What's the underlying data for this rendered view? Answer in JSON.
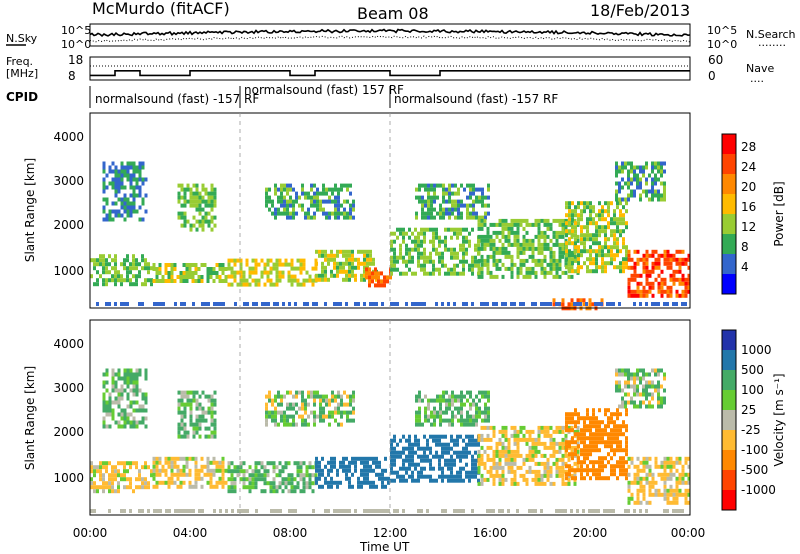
{
  "header": {
    "station": "McMurdo (fitACF)",
    "beam": "Beam 08",
    "date": "18/Feb/2013"
  },
  "noise_panel": {
    "left_label": "N.Sky",
    "right_label": "N.Search",
    "right_dots": "........",
    "left_ticks": [
      "10^5",
      "10^0"
    ],
    "right_ticks": [
      "10^5",
      "10^0"
    ]
  },
  "freq_panel": {
    "left_label_line1": "Freq.",
    "left_label_line2": "[MHz]",
    "right_label": "Nave",
    "right_dots": "....",
    "left_ticks": [
      "18",
      "8"
    ],
    "right_ticks": [
      "60",
      "0"
    ]
  },
  "cpid": {
    "label": "CPID",
    "segments": [
      {
        "text": "normalsound (fast) -157 RF",
        "start_hour": 0,
        "end_hour": 6
      },
      {
        "text": "normalsound (fast) 157 RF",
        "start_hour": 6,
        "end_hour": 12
      },
      {
        "text": "normalsound (fast) -157 RF",
        "start_hour": 12,
        "end_hour": 24
      }
    ]
  },
  "panels": {
    "power": {
      "ylabel": "Slant Range [km]",
      "yticks": [
        "4000",
        "3000",
        "2000",
        "1000"
      ],
      "colorbar_label": "Power [dB]",
      "colorbar_ticks": [
        "28",
        "24",
        "20",
        "16",
        "12",
        "8",
        "4"
      ],
      "colorbar_colors": [
        "#ff0000",
        "#ff4400",
        "#ff8800",
        "#ffbb00",
        "#99cc33",
        "#33aa55",
        "#3366cc",
        "#0000ff"
      ]
    },
    "velocity": {
      "ylabel": "Slant Range [km]",
      "yticks": [
        "4000",
        "3000",
        "2000",
        "1000"
      ],
      "colorbar_label": "Velocity [m s⁻¹]",
      "colorbar_ticks": [
        "1000",
        "500",
        "100",
        "25",
        "-25",
        "-100",
        "-500",
        "-1000"
      ],
      "colorbar_colors": [
        "#2233aa",
        "#2277aa",
        "#44aa66",
        "#66cc33",
        "#bbbbaa",
        "#ffbb33",
        "#ff8800",
        "#ff4400",
        "#ff0000"
      ]
    }
  },
  "xaxis": {
    "label": "Time UT",
    "ticks": [
      "00:00",
      "04:00",
      "08:00",
      "12:00",
      "16:00",
      "20:00",
      "00:00"
    ]
  },
  "chart_data": {
    "type": "heatmap",
    "title": "McMurdo (fitACF)   Beam 08   18/Feb/2013",
    "xlabel": "Time UT",
    "ylabel": "Slant Range [km]",
    "xlim_hours": [
      0,
      24
    ],
    "ylim_km": [
      180,
      4600
    ],
    "power_bands": [
      {
        "start_hour": 0.0,
        "end_hour": 2.5,
        "range_low": 700,
        "range_high": 1400,
        "power_db": 12
      },
      {
        "start_hour": 0.5,
        "end_hour": 2.2,
        "range_low": 2200,
        "range_high": 3500,
        "power_db": 8
      },
      {
        "start_hour": 2.5,
        "end_hour": 5.5,
        "range_low": 800,
        "range_high": 1200,
        "power_db": 14
      },
      {
        "start_hour": 3.5,
        "end_hour": 5.0,
        "range_low": 2000,
        "range_high": 3000,
        "power_db": 12
      },
      {
        "start_hour": 5.5,
        "end_hour": 9.0,
        "range_low": 700,
        "range_high": 1300,
        "power_db": 16
      },
      {
        "start_hour": 7.0,
        "end_hour": 10.5,
        "range_low": 2200,
        "range_high": 3000,
        "power_db": 10
      },
      {
        "start_hour": 9.0,
        "end_hour": 11.5,
        "range_low": 800,
        "range_high": 1500,
        "power_db": 14
      },
      {
        "start_hour": 11.0,
        "end_hour": 12.0,
        "range_low": 700,
        "range_high": 1100,
        "power_db": 24
      },
      {
        "start_hour": 12.0,
        "end_hour": 15.5,
        "range_low": 1000,
        "range_high": 2000,
        "power_db": 12
      },
      {
        "start_hour": 13.0,
        "end_hour": 16.0,
        "range_low": 2200,
        "range_high": 3000,
        "power_db": 10
      },
      {
        "start_hour": 15.5,
        "end_hour": 19.5,
        "range_low": 900,
        "range_high": 2200,
        "power_db": 12
      },
      {
        "start_hour": 18.5,
        "end_hour": 20.5,
        "range_low": 200,
        "range_high": 400,
        "power_db": 24
      },
      {
        "start_hour": 19.0,
        "end_hour": 21.5,
        "range_low": 1000,
        "range_high": 2600,
        "power_db": 14
      },
      {
        "start_hour": 21.5,
        "end_hour": 24.0,
        "range_low": 500,
        "range_high": 1500,
        "power_db": 26
      },
      {
        "start_hour": 21.0,
        "end_hour": 23.0,
        "range_low": 2600,
        "range_high": 3500,
        "power_db": 10
      }
    ],
    "velocity_bands": [
      {
        "start_hour": 0.0,
        "end_hour": 2.5,
        "range_low": 700,
        "range_high": 1400,
        "velocity": -100
      },
      {
        "start_hour": 0.5,
        "end_hour": 2.2,
        "range_low": 2200,
        "range_high": 3500,
        "velocity": 100
      },
      {
        "start_hour": 2.5,
        "end_hour": 5.5,
        "range_low": 800,
        "range_high": 1500,
        "velocity": -100
      },
      {
        "start_hour": 3.5,
        "end_hour": 5.0,
        "range_low": 2000,
        "range_high": 3000,
        "velocity": 100
      },
      {
        "start_hour": 5.5,
        "end_hour": 9.0,
        "range_low": 700,
        "range_high": 1400,
        "velocity": 100
      },
      {
        "start_hour": 7.0,
        "end_hour": 10.5,
        "range_low": 2200,
        "range_high": 3000,
        "velocity": 25
      },
      {
        "start_hour": 9.0,
        "end_hour": 12.0,
        "range_low": 800,
        "range_high": 1500,
        "velocity": 500
      },
      {
        "start_hour": 12.0,
        "end_hour": 15.5,
        "range_low": 1000,
        "range_high": 2000,
        "velocity": 500
      },
      {
        "start_hour": 13.0,
        "end_hour": 16.0,
        "range_low": 2200,
        "range_high": 3000,
        "velocity": 100
      },
      {
        "start_hour": 15.5,
        "end_hour": 19.5,
        "range_low": 900,
        "range_high": 2200,
        "velocity": -100
      },
      {
        "start_hour": 19.0,
        "end_hour": 21.5,
        "range_low": 1000,
        "range_high": 2600,
        "velocity": -500
      },
      {
        "start_hour": 21.5,
        "end_hour": 24.0,
        "range_low": 500,
        "range_high": 1500,
        "velocity": -100
      },
      {
        "start_hour": 21.0,
        "end_hour": 23.0,
        "range_low": 2600,
        "range_high": 3500,
        "velocity": 25
      }
    ],
    "frequency_steps_mhz": [
      {
        "start_hour": 0.0,
        "end_hour": 1.0,
        "freq": 10
      },
      {
        "start_hour": 1.0,
        "end_hour": 2.0,
        "freq": 12
      },
      {
        "start_hour": 2.0,
        "end_hour": 4.0,
        "freq": 10
      },
      {
        "start_hour": 4.0,
        "end_hour": 8.0,
        "freq": 12
      },
      {
        "start_hour": 8.0,
        "end_hour": 9.0,
        "freq": 10
      },
      {
        "start_hour": 9.0,
        "end_hour": 12.0,
        "freq": 12
      },
      {
        "start_hour": 12.0,
        "end_hour": 14.0,
        "freq": 10
      },
      {
        "start_hour": 14.0,
        "end_hour": 24.0,
        "freq": 12
      }
    ]
  }
}
